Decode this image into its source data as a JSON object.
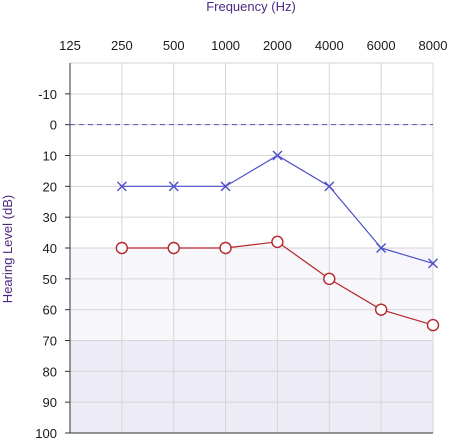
{
  "chart_data": {
    "type": "line",
    "title": "",
    "xlabel": "Frequency (Hz)",
    "ylabel": "Hearing Level (dB)",
    "x_categories": [
      "125",
      "250",
      "500",
      "1000",
      "2000",
      "4000",
      "6000",
      "8000"
    ],
    "y_ticks": [
      -10,
      0,
      10,
      20,
      30,
      40,
      50,
      60,
      70,
      80,
      90,
      100
    ],
    "ylim": [
      -20,
      100
    ],
    "y_inverted": true,
    "reference_line": {
      "value": 0,
      "style": "dashed",
      "color": "#5b55b8"
    },
    "shaded_bands": [
      {
        "from": 40,
        "to": 70,
        "color": "#f7f6fb"
      },
      {
        "from": 70,
        "to": 100,
        "color": "#ecebf6"
      }
    ],
    "grid": true,
    "series": [
      {
        "marker": "x",
        "color": "#4c4fc9",
        "points": [
          {
            "x": "250",
            "y": 20
          },
          {
            "x": "500",
            "y": 20
          },
          {
            "x": "1000",
            "y": 20
          },
          {
            "x": "2000",
            "y": 10
          },
          {
            "x": "4000",
            "y": 20
          },
          {
            "x": "6000",
            "y": 40
          },
          {
            "x": "8000",
            "y": 45
          }
        ]
      },
      {
        "marker": "circle",
        "color": "#b5252b",
        "points": [
          {
            "x": "250",
            "y": 40
          },
          {
            "x": "500",
            "y": 40
          },
          {
            "x": "1000",
            "y": 40
          },
          {
            "x": "2000",
            "y": 38
          },
          {
            "x": "4000",
            "y": 50
          },
          {
            "x": "6000",
            "y": 60
          },
          {
            "x": "8000",
            "y": 65
          }
        ]
      }
    ]
  }
}
